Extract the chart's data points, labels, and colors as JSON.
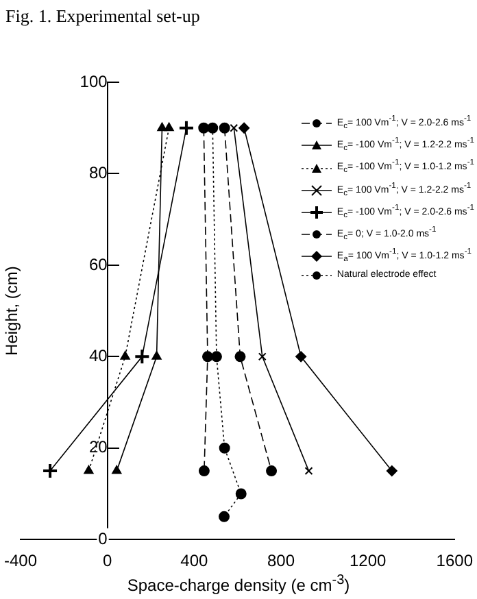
{
  "chart_data": {
    "type": "line",
    "title": "Fig. 1. Experimental set-up",
    "xlabel": "Space-charge density (e cm$^{-3}$)",
    "ylabel": "Height, (cm)",
    "xlim": [
      -400,
      1600
    ],
    "xticks": [
      -400,
      0,
      400,
      800,
      1200,
      1600
    ],
    "ylim": [
      0,
      100
    ],
    "yticks": [
      0,
      20,
      40,
      60,
      80,
      100
    ],
    "grid": false,
    "legend": "top right",
    "series": [
      {
        "name": "E$_{c}$= 100 Vm$^{-1}$; V = 2.0-2.6 ms$^{-1}$",
        "color": "#000000",
        "marker": "circle",
        "line_style": "dashed",
        "x": [
          540,
          612,
          756
        ],
        "values": [
          90,
          40,
          15
        ]
      },
      {
        "name": "E$_{c}$= -100 Vm$^{-1}$; V = 1.2-2.2 ms$^{-1}$",
        "color": "#000000",
        "marker": "triangle",
        "line_style": "solid",
        "x": [
          252,
          227,
          43
        ],
        "values": [
          90,
          40,
          15
        ]
      },
      {
        "name": "E$_{c}$= -100 Vm$^{-1}$; V = 1.0-1.2 ms$^{-1}$",
        "color": "#000000",
        "marker": "triangle",
        "line_style": "dotted",
        "x": [
          284,
          82,
          -86
        ],
        "values": [
          90,
          40,
          15
        ]
      },
      {
        "name": "E$_{c}$= 100 Vm$^{-1}$; V = 1.2-2.2 ms$^{-1}$",
        "color": "#000000",
        "marker": "cross",
        "line_style": "solid",
        "x": [
          583,
          714,
          928
        ],
        "values": [
          90,
          40,
          15
        ]
      },
      {
        "name": "E$_{c}$= -100 Vm$^{-1}$; V = 2.0-2.6 ms$^{-1}$",
        "color": "#000000",
        "marker": "plus",
        "line_style": "solid",
        "x": [
          364,
          160,
          -264
        ],
        "values": [
          90,
          40,
          15
        ]
      },
      {
        "name": "E$_{c}$= 0; V = 1.0-2.0 ms$^{-1}$",
        "color": "#000000",
        "marker": "circle",
        "line_style": "dashed",
        "x": [
          444,
          462,
          446
        ],
        "values": [
          90,
          40,
          15
        ]
      },
      {
        "name": "E$_{a}$= 100 Vm$^{-1}$; V = 1.0-1.2 ms$^{-1}$",
        "color": "#000000",
        "marker": "diamond",
        "line_style": "solid",
        "x": [
          630,
          892,
          1311
        ],
        "values": [
          90,
          40,
          15
        ]
      },
      {
        "name": "Natural electrode effect",
        "color": "#000000",
        "marker": "circle",
        "line_style": "dotted",
        "x": [
          485,
          503,
          540,
          616,
          538
        ],
        "values": [
          90,
          40,
          20,
          10,
          5
        ]
      }
    ]
  }
}
